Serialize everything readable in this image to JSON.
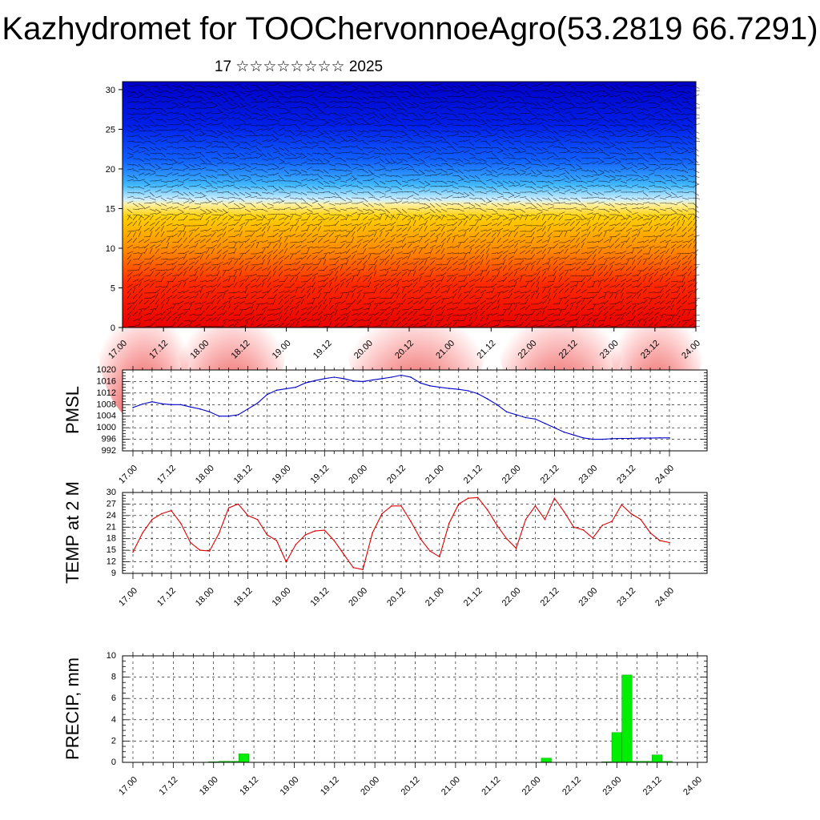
{
  "title": "Kazhydromet for TOOChervonnoeAgro(53.2819 66.7291)",
  "subtitle": "17 ☆☆☆☆☆☆☆☆ 2025",
  "chart_data": [
    {
      "type": "heatmap",
      "title": "",
      "ylabel": "",
      "ylim": [
        0,
        31
      ],
      "yticks": [
        0,
        5,
        10,
        15,
        20,
        25,
        30
      ],
      "xticks": [
        "17.00",
        "17.12",
        "18.00",
        "18.12",
        "19.00",
        "19.12",
        "20.00",
        "20.12",
        "21.00",
        "21.12",
        "22.00",
        "22.12",
        "23.00",
        "23.12",
        "24.00"
      ],
      "colors": {
        "low": "#ff0000",
        "mid": "#ffd200",
        "high": "#0000e0"
      },
      "description_overlay": "wind barbs"
    },
    {
      "type": "line",
      "ylabel": "PMSL",
      "ylim": [
        992,
        1020
      ],
      "yticks": [
        992,
        996,
        1000,
        1004,
        1008,
        1012,
        1016,
        1020
      ],
      "xticks": [
        "17.00",
        "17.12",
        "18.00",
        "18.12",
        "19.00",
        "19.12",
        "20.00",
        "20.12",
        "21.00",
        "21.12",
        "22.00",
        "22.12",
        "23.00",
        "23.12",
        "24.00"
      ],
      "x_hours": [
        0,
        3,
        6,
        9,
        12,
        15,
        18,
        21,
        24,
        27,
        30,
        33,
        36,
        39,
        42,
        45,
        48,
        51,
        54,
        57,
        60,
        63,
        66,
        69,
        72,
        75,
        78,
        81,
        84,
        87,
        90,
        93,
        96,
        99,
        102,
        105,
        108,
        111,
        114,
        117,
        120,
        123,
        126,
        129,
        132,
        135,
        138,
        141,
        144,
        147,
        150,
        153,
        156,
        159,
        162,
        165,
        168
      ],
      "values": [
        1007.0,
        1008.2,
        1009.0,
        1008.3,
        1008.0,
        1008.0,
        1007.2,
        1006.5,
        1005.5,
        1004.0,
        1004.0,
        1004.5,
        1006.5,
        1008.5,
        1011.5,
        1013.0,
        1013.5,
        1014.0,
        1015.5,
        1016.3,
        1017.0,
        1017.5,
        1017.0,
        1016.2,
        1016.0,
        1016.5,
        1017.0,
        1017.5,
        1018.2,
        1017.5,
        1015.5,
        1014.5,
        1014.0,
        1013.6,
        1013.3,
        1012.8,
        1011.8,
        1010.0,
        1008.0,
        1005.5,
        1004.5,
        1003.5,
        1003.0,
        1001.5,
        1000.0,
        998.5,
        997.5,
        996.5,
        996.0,
        996.0,
        996.2,
        996.3,
        996.3,
        996.4,
        996.4,
        996.5,
        996.5
      ],
      "color": "#0000cc"
    },
    {
      "type": "line",
      "ylabel": "TEMP at 2 M",
      "ylim": [
        9,
        30
      ],
      "yticks": [
        9,
        12,
        15,
        18,
        21,
        24,
        27,
        30
      ],
      "xticks": [
        "17.00",
        "17.12",
        "18.00",
        "18.12",
        "19.00",
        "19.12",
        "20.00",
        "20.12",
        "21.00",
        "21.12",
        "22.00",
        "22.12",
        "23.00",
        "23.12",
        "24.00"
      ],
      "x_hours": [
        0,
        3,
        6,
        9,
        12,
        15,
        18,
        21,
        24,
        27,
        30,
        33,
        36,
        39,
        42,
        45,
        48,
        51,
        54,
        57,
        60,
        63,
        66,
        69,
        72,
        75,
        78,
        81,
        84,
        87,
        90,
        93,
        96,
        99,
        102,
        105,
        108,
        111,
        114,
        117,
        120,
        123,
        126,
        129,
        132,
        135,
        138,
        141,
        144,
        147,
        150,
        153,
        156,
        159,
        162,
        165,
        168
      ],
      "values": [
        14.5,
        19.5,
        23.0,
        24.5,
        25.3,
        22.0,
        17.0,
        15.0,
        14.8,
        19.5,
        26.0,
        27.0,
        24.0,
        23.0,
        19.0,
        17.5,
        12.0,
        16.5,
        19.0,
        20.0,
        20.2,
        17.5,
        14.0,
        10.5,
        10.0,
        19.5,
        24.5,
        26.5,
        26.5,
        22.5,
        18.0,
        14.8,
        13.3,
        22.0,
        27.0,
        28.5,
        28.7,
        25.5,
        21.5,
        18.0,
        15.5,
        23.0,
        26.5,
        23.0,
        28.5,
        25.0,
        21.0,
        20.3,
        18.2,
        21.5,
        22.5,
        26.8,
        24.5,
        23.0,
        19.5,
        17.5,
        17.0
      ],
      "color": "#dd0000"
    },
    {
      "type": "bar",
      "ylabel": "PRECIP, mm",
      "ylim": [
        0,
        10
      ],
      "yticks": [
        0,
        2,
        4,
        6,
        8,
        10
      ],
      "xticks": [
        "17.00",
        "17.12",
        "18.00",
        "18.12",
        "19.00",
        "19.12",
        "20.00",
        "20.12",
        "21.00",
        "21.12",
        "22.00",
        "22.12",
        "23.00",
        "23.12",
        "24.00"
      ],
      "x_hours": [
        24,
        27,
        30,
        33,
        123,
        141,
        144,
        147,
        150,
        153,
        156,
        159
      ],
      "values": [
        0.05,
        0.1,
        0.1,
        0.8,
        0.4,
        0.05,
        2.8,
        8.2,
        0.1,
        0.1,
        0.7,
        0.1
      ],
      "color": "#00ee00"
    }
  ]
}
